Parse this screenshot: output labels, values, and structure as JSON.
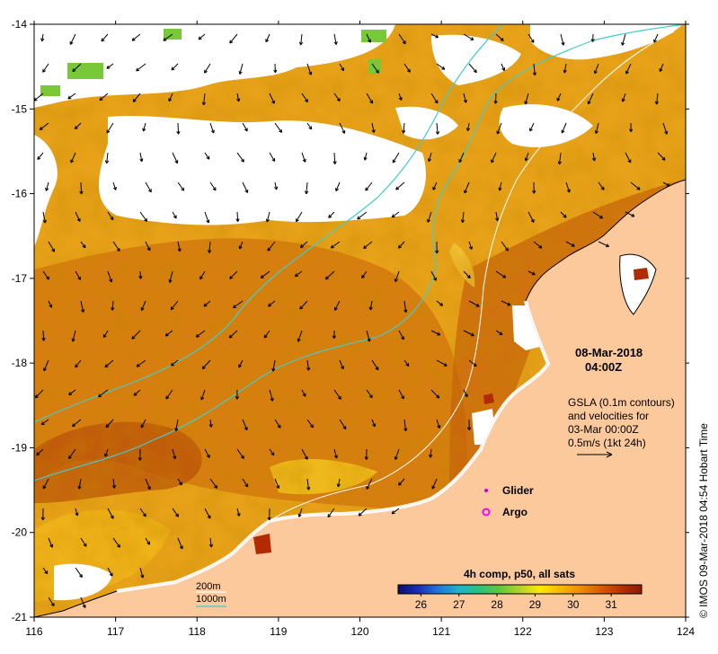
{
  "map": {
    "lon_ticks": [
      "116",
      "117",
      "118",
      "119",
      "120",
      "121",
      "122",
      "123",
      "124"
    ],
    "lat_ticks": [
      "-14",
      "-15",
      "-16",
      "-17",
      "-18",
      "-19",
      "-20",
      "-21"
    ],
    "lon_range": [
      116,
      124
    ],
    "lat_range": [
      -21,
      -14
    ]
  },
  "annotation": {
    "date": "08-Mar-2018",
    "time": "04:00Z",
    "gsla_line1": "GSLA (0.1m contours)",
    "gsla_line2": "and velocities for",
    "gsla_line3": "03-Mar 00:00Z",
    "gsla_line4": "0.5m/s (1kt 24h)"
  },
  "legend": {
    "glider_label": "Glider",
    "argo_label": "Argo",
    "glider_color": "#cc00cc",
    "argo_color": "#ff00ff",
    "isobath_200": "200m",
    "isobath_1000": "1000m",
    "isobath_200_color": "#ffffff",
    "isobath_1000_color": "#44cccc"
  },
  "colorbar": {
    "title": "4h comp, p50, all sats",
    "ticks": [
      "26",
      "27",
      "28",
      "29",
      "30",
      "31"
    ],
    "range": [
      25.4,
      31.8
    ],
    "colors": [
      "#0d0d6b",
      "#1a2fb8",
      "#1f78d8",
      "#21b3c9",
      "#2cc27a",
      "#62c63b",
      "#b4d22c",
      "#ffe800",
      "#f7b900",
      "#ee8c00",
      "#d95b00",
      "#b53000",
      "#8c1a00"
    ]
  },
  "credit": "© IMOS 09-Mar-2018 04:54 Hobart Time",
  "colors": {
    "land": "#fbc99b",
    "sea_base": "#e39a16",
    "coast": "#000000"
  }
}
